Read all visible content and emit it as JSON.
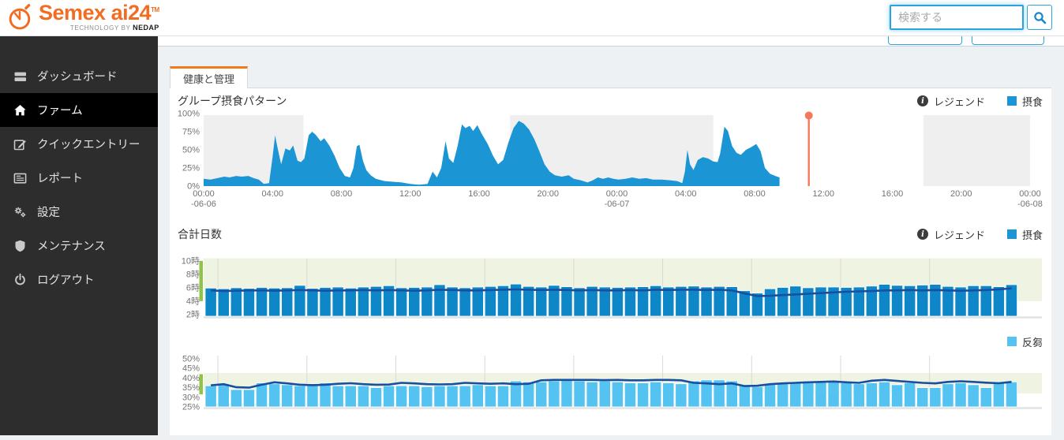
{
  "header": {
    "brand": "Semex ai24",
    "brand_tm": "TM",
    "tagline": "TECHNOLOGY BY",
    "tagline_brand": "NEDAP",
    "search_placeholder": "検索する"
  },
  "sidebar": {
    "items": [
      {
        "label": "ダッシュボード",
        "icon": "dashboard-icon",
        "active": false
      },
      {
        "label": "ファーム",
        "icon": "home-icon",
        "active": true
      },
      {
        "label": "クイックエントリー",
        "icon": "edit-icon",
        "active": false
      },
      {
        "label": "レポート",
        "icon": "report-icon",
        "active": false
      },
      {
        "label": "設定",
        "icon": "settings-icon",
        "active": false
      },
      {
        "label": "メンテナンス",
        "icon": "shield-icon",
        "active": false
      },
      {
        "label": "ログアウト",
        "icon": "power-icon",
        "active": false
      }
    ]
  },
  "tab": {
    "label": "健康と管理"
  },
  "colors": {
    "accent_orange": "#f0791e",
    "logo_orange": "#f26d21",
    "feed_blue": "#1b95d4",
    "bar_blue": "#0e87c9",
    "rumination_blue": "#55c3f1",
    "trend_dark_blue": "#1a4f9f",
    "target_band_green": "#eef4e1",
    "target_indicator_green": "#8fc449",
    "night_band_gray": "#efefef",
    "now_marker_salmon": "#f5785a"
  },
  "chart_data": [
    {
      "type": "area",
      "title": "グループ摂食パターン",
      "legend": [
        {
          "icon": "info-icon",
          "label": "レジェンド"
        },
        {
          "swatch": "#1b95d4",
          "label": "摂食"
        }
      ],
      "ylim": [
        0,
        100
      ],
      "yticks": [
        {
          "v": 100,
          "label": "100%"
        },
        {
          "v": 75,
          "label": "75%"
        },
        {
          "v": 50,
          "label": "50%"
        },
        {
          "v": 25,
          "label": "25%"
        },
        {
          "v": 0,
          "label": "0%"
        }
      ],
      "x_hours_span": 48,
      "xticks": [
        {
          "h": 0,
          "time": "00:00",
          "date": "-06-06"
        },
        {
          "h": 4,
          "time": "04:00"
        },
        {
          "h": 8,
          "time": "08:00"
        },
        {
          "h": 12,
          "time": "12:00"
        },
        {
          "h": 16,
          "time": "16:00"
        },
        {
          "h": 20,
          "time": "20:00"
        },
        {
          "h": 24,
          "time": "00:00",
          "date": "-06-07"
        },
        {
          "h": 28,
          "time": "04:00"
        },
        {
          "h": 32,
          "time": "08:00"
        },
        {
          "h": 36,
          "time": "12:00"
        },
        {
          "h": 40,
          "time": "16:00"
        },
        {
          "h": 44,
          "time": "20:00"
        },
        {
          "h": 48,
          "time": "00:00",
          "date": "-06-08"
        }
      ],
      "night_bands": [
        [
          0,
          5.8
        ],
        [
          17.8,
          29.6
        ],
        [
          41.8,
          48
        ]
      ],
      "now_marker_hour": 35.15,
      "series": [
        {
          "name": "摂食",
          "color": "#1b95d4",
          "points": [
            [
              0,
              10
            ],
            [
              0.4,
              9
            ],
            [
              0.8,
              11
            ],
            [
              1.2,
              13
            ],
            [
              1.5,
              12
            ],
            [
              1.9,
              14
            ],
            [
              2.2,
              13
            ],
            [
              2.6,
              14
            ],
            [
              2.9,
              11
            ],
            [
              3.2,
              9
            ],
            [
              3.5,
              3
            ],
            [
              3.8,
              4
            ],
            [
              4.0,
              40
            ],
            [
              4.15,
              70
            ],
            [
              4.3,
              52
            ],
            [
              4.5,
              30
            ],
            [
              4.75,
              52
            ],
            [
              5.0,
              49
            ],
            [
              5.2,
              56
            ],
            [
              5.45,
              35
            ],
            [
              5.65,
              33
            ],
            [
              5.85,
              38
            ],
            [
              6.1,
              70
            ],
            [
              6.3,
              75
            ],
            [
              6.5,
              71
            ],
            [
              6.8,
              62
            ],
            [
              7.0,
              66
            ],
            [
              7.3,
              56
            ],
            [
              7.6,
              42
            ],
            [
              7.9,
              25
            ],
            [
              8.2,
              14
            ],
            [
              8.5,
              12
            ],
            [
              8.7,
              25
            ],
            [
              8.9,
              55
            ],
            [
              9.05,
              57
            ],
            [
              9.25,
              35
            ],
            [
              9.45,
              22
            ],
            [
              9.7,
              15
            ],
            [
              10.0,
              10
            ],
            [
              10.5,
              7
            ],
            [
              11.0,
              6
            ],
            [
              11.5,
              5
            ],
            [
              12.0,
              3
            ],
            [
              12.5,
              2
            ],
            [
              13.0,
              3
            ],
            [
              13.3,
              20
            ],
            [
              13.55,
              12
            ],
            [
              13.8,
              25
            ],
            [
              14.05,
              62
            ],
            [
              14.25,
              38
            ],
            [
              14.5,
              32
            ],
            [
              14.75,
              55
            ],
            [
              15.0,
              85
            ],
            [
              15.2,
              80
            ],
            [
              15.45,
              83
            ],
            [
              15.65,
              76
            ],
            [
              15.9,
              84
            ],
            [
              16.15,
              72
            ],
            [
              16.5,
              58
            ],
            [
              16.8,
              42
            ],
            [
              17.1,
              30
            ],
            [
              17.4,
              36
            ],
            [
              17.7,
              60
            ],
            [
              18.0,
              80
            ],
            [
              18.3,
              90
            ],
            [
              18.6,
              86
            ],
            [
              18.9,
              78
            ],
            [
              19.2,
              65
            ],
            [
              19.5,
              48
            ],
            [
              19.8,
              30
            ],
            [
              20.1,
              20
            ],
            [
              20.4,
              15
            ],
            [
              20.8,
              13
            ],
            [
              21.2,
              15
            ],
            [
              21.5,
              10
            ],
            [
              21.9,
              8
            ],
            [
              22.3,
              5
            ],
            [
              22.6,
              8
            ],
            [
              22.9,
              12
            ],
            [
              23.2,
              10
            ],
            [
              23.5,
              12
            ],
            [
              23.8,
              10
            ],
            [
              24.1,
              9
            ],
            [
              24.5,
              10
            ],
            [
              24.9,
              12
            ],
            [
              25.3,
              10
            ],
            [
              25.7,
              11
            ],
            [
              26.1,
              9
            ],
            [
              26.6,
              9
            ],
            [
              27.1,
              8
            ],
            [
              27.5,
              7
            ],
            [
              27.8,
              4
            ],
            [
              27.95,
              20
            ],
            [
              28.1,
              50
            ],
            [
              28.25,
              30
            ],
            [
              28.45,
              22
            ],
            [
              28.7,
              36
            ],
            [
              29.0,
              40
            ],
            [
              29.3,
              38
            ],
            [
              29.6,
              34
            ],
            [
              29.85,
              33
            ],
            [
              30.0,
              45
            ],
            [
              30.25,
              82
            ],
            [
              30.45,
              76
            ],
            [
              30.7,
              55
            ],
            [
              30.95,
              46
            ],
            [
              31.2,
              43
            ],
            [
              31.5,
              50
            ],
            [
              31.75,
              53
            ],
            [
              32.1,
              58
            ],
            [
              32.35,
              48
            ],
            [
              32.6,
              25
            ],
            [
              32.9,
              17
            ],
            [
              33.2,
              14
            ],
            [
              33.45,
              12
            ]
          ]
        }
      ]
    },
    {
      "type": "bar-line",
      "title": "合計日数",
      "legend": [
        {
          "icon": "info-icon",
          "label": "レジェンド"
        },
        {
          "swatch": "#1b95d4",
          "label": "摂食"
        }
      ],
      "ylim": [
        1.75,
        10.4
      ],
      "yticks": [
        {
          "v": 10,
          "label": "10時"
        },
        {
          "v": 8,
          "label": "8時"
        },
        {
          "v": 6,
          "label": "6時"
        },
        {
          "v": 4,
          "label": "4時"
        },
        {
          "v": 2,
          "label": "2時"
        }
      ],
      "target_band": [
        4,
        10.4
      ],
      "target_indicator": [
        4,
        10
      ],
      "bar_color": "#0e87c9",
      "line_color": "#1a4f9f",
      "week_gridline_every": 7,
      "bars": [
        5.95,
        5.85,
        6.0,
        5.9,
        6.05,
        5.95,
        6.0,
        6.35,
        5.9,
        6.05,
        6.1,
        5.95,
        6.1,
        6.2,
        6.3,
        6.0,
        6.05,
        6.1,
        6.45,
        6.1,
        6.0,
        6.1,
        6.2,
        6.3,
        6.55,
        6.2,
        6.1,
        6.35,
        6.15,
        6.0,
        6.2,
        6.1,
        6.05,
        6.1,
        6.15,
        6.3,
        6.1,
        6.2,
        6.25,
        6.1,
        6.2,
        6.15,
        5.55,
        5.2,
        5.85,
        6.05,
        6.25,
        6.0,
        6.1,
        6.1,
        6.05,
        6.1,
        6.25,
        6.5,
        6.35,
        6.3,
        6.4,
        6.5,
        6.2,
        6.1,
        6.3,
        6.3,
        6.15,
        6.45
      ],
      "trend": [
        5.6,
        5.5,
        5.55,
        5.6,
        5.6,
        5.55,
        5.6,
        5.65,
        5.6,
        5.55,
        5.6,
        5.6,
        5.65,
        5.6,
        5.65,
        5.6,
        5.55,
        5.6,
        5.7,
        5.65,
        5.6,
        5.6,
        5.65,
        5.7,
        5.75,
        5.7,
        5.65,
        5.7,
        5.65,
        5.6,
        5.65,
        5.6,
        5.6,
        5.65,
        5.6,
        5.7,
        5.65,
        5.7,
        5.7,
        5.65,
        5.7,
        5.6,
        5.15,
        4.75,
        4.8,
        4.9,
        5.0,
        5.1,
        5.2,
        5.3,
        5.4,
        5.45,
        5.5,
        5.6,
        5.6,
        5.65,
        5.6,
        5.65,
        5.6,
        5.55,
        5.6,
        5.65,
        5.75,
        5.9
      ]
    },
    {
      "type": "bar-line",
      "title": "",
      "legend": [
        {
          "swatch": "#55c3f1",
          "label": "反芻"
        }
      ],
      "ylim": [
        25,
        52
      ],
      "yticks": [
        {
          "v": 50,
          "label": "50%"
        },
        {
          "v": 45,
          "label": "45%"
        },
        {
          "v": 40,
          "label": "40%"
        },
        {
          "v": 35,
          "label": "35%"
        },
        {
          "v": 30,
          "label": "30%"
        },
        {
          "v": 25,
          "label": "25%"
        }
      ],
      "target_band": [
        32,
        42.6
      ],
      "target_indicator": [
        31.5,
        42
      ],
      "bar_color": "#55c3f1",
      "line_color": "#1a4f9f",
      "week_gridline_every": 7,
      "bars": [
        36,
        36.5,
        34,
        34,
        37.5,
        37,
        36.5,
        36,
        37,
        37.5,
        36,
        36,
        36,
        35,
        36,
        36,
        36,
        35.5,
        36,
        36,
        36,
        36.5,
        36,
        36,
        38.5,
        38,
        38,
        38.5,
        39,
        38.5,
        38,
        38.5,
        38,
        37.5,
        37.5,
        38,
        37.5,
        37,
        38.5,
        39,
        39,
        38.5,
        36.5,
        35.5,
        37,
        37.5,
        38,
        38.5,
        38.5,
        38,
        37.5,
        37,
        37.5,
        38,
        36.5,
        37.5,
        35,
        35,
        37,
        37.5,
        36.5,
        35,
        37.5,
        38
      ],
      "trend": [
        36.2,
        36.8,
        35.2,
        35,
        36.5,
        37.8,
        37.2,
        36.5,
        36.3,
        36.5,
        37,
        37.3,
        36.8,
        36.5,
        36.6,
        37.5,
        37.2,
        36.8,
        36.7,
        36.8,
        37.5,
        37.2,
        37,
        37.2,
        36.8,
        37,
        38.8,
        39,
        39,
        39,
        39,
        38.9,
        39,
        38.8,
        38.8,
        39,
        39,
        38.8,
        37.5,
        37.2,
        36.8,
        37.2,
        35.8,
        36,
        36.8,
        37.2,
        37.5,
        37.8,
        38,
        38.2,
        37.8,
        37.5,
        38.6,
        39,
        38.5,
        38,
        37.5,
        37.2,
        38,
        38.3,
        38,
        37.6,
        37.3,
        38
      ]
    }
  ]
}
